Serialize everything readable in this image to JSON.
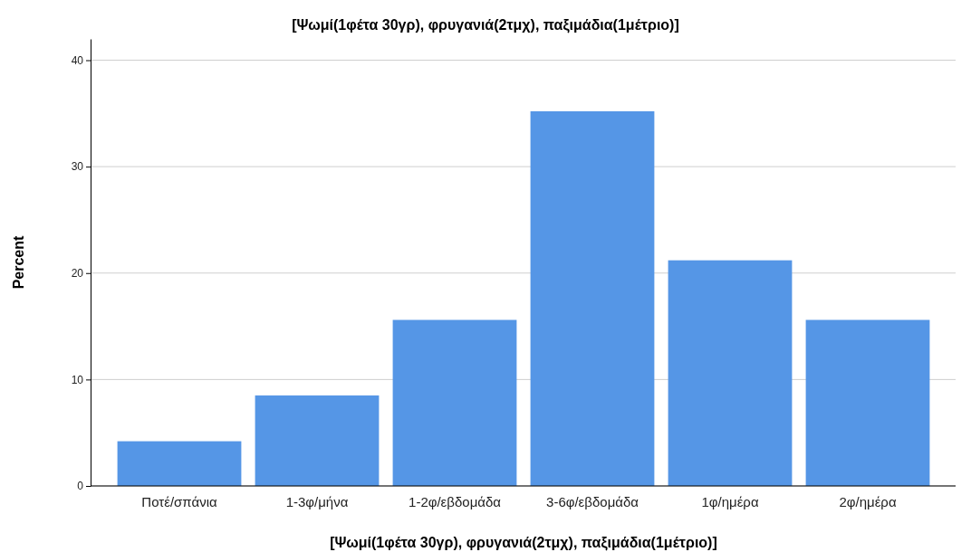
{
  "chart_data": {
    "type": "bar",
    "title": "[Ψωμί(1φέτα 30γρ), φρυγανιά(2τμχ), παξιμάδια(1μέτριο)]",
    "xlabel": "[Ψωμί(1φέτα 30γρ), φρυγανιά(2τμχ), παξιμάδια(1μέτριο)]",
    "ylabel": "Percent",
    "categories": [
      "Ποτέ/σπάνια",
      "1-3φ/μήνα",
      "1-2φ/εβδομάδα",
      "3-6φ/εβδομάδα",
      "1φ/ημέρα",
      "2φ/ημέρα"
    ],
    "values": [
      4.2,
      8.5,
      15.6,
      35.2,
      21.2,
      15.6
    ],
    "color": "#5596e6",
    "ylim": [
      0,
      42
    ],
    "yticks": [
      0,
      10,
      20,
      30,
      40
    ],
    "grid": "y"
  }
}
